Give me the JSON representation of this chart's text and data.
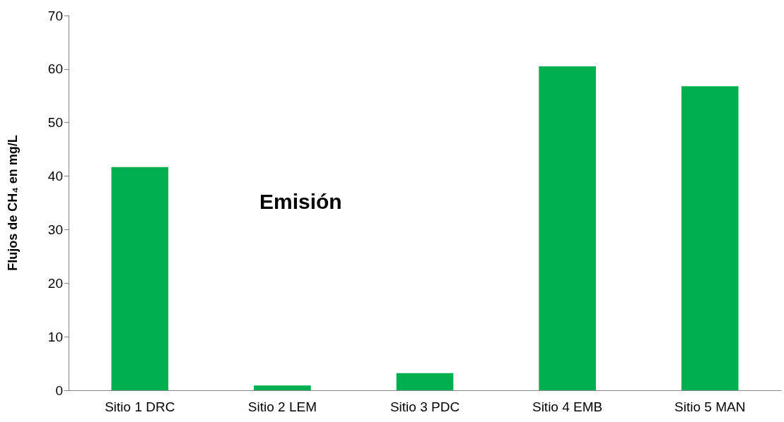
{
  "chart_data": {
    "type": "bar",
    "ylabel": "Flujos de CH₄ en mg/L",
    "categories": [
      "Sitio 1 DRC",
      "Sitio 2 LEM",
      "Sitio 3 PDC",
      "Sitio 4 EMB",
      "Sitio 5 MAN"
    ],
    "values": [
      41.7,
      0.9,
      3.2,
      60.5,
      56.8
    ],
    "color": "#00b050",
    "ylim": [
      0,
      70
    ],
    "yticks": [
      0,
      10,
      20,
      30,
      40,
      50,
      60,
      70
    ],
    "grid": false,
    "annotations": [
      "Emisión"
    ]
  }
}
